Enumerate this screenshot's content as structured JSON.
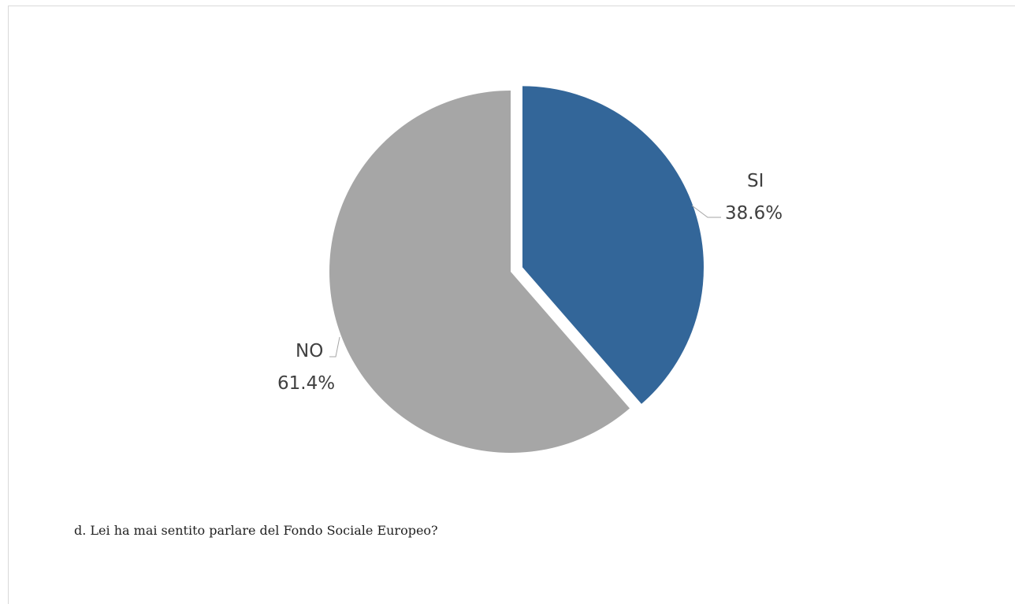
{
  "chart_data": {
    "type": "pie",
    "slices": [
      {
        "label": "SI",
        "value": 38.6,
        "display": "38.6%",
        "color": "#336699",
        "exploded": true
      },
      {
        "label": "NO",
        "value": 61.4,
        "display": "61.4%",
        "color": "#a6a6a6",
        "exploded": false
      }
    ],
    "start_angle_deg": 0,
    "direction": "clockwise"
  },
  "caption": "d. Lei ha mai sentito parlare del Fondo Sociale Europeo?"
}
